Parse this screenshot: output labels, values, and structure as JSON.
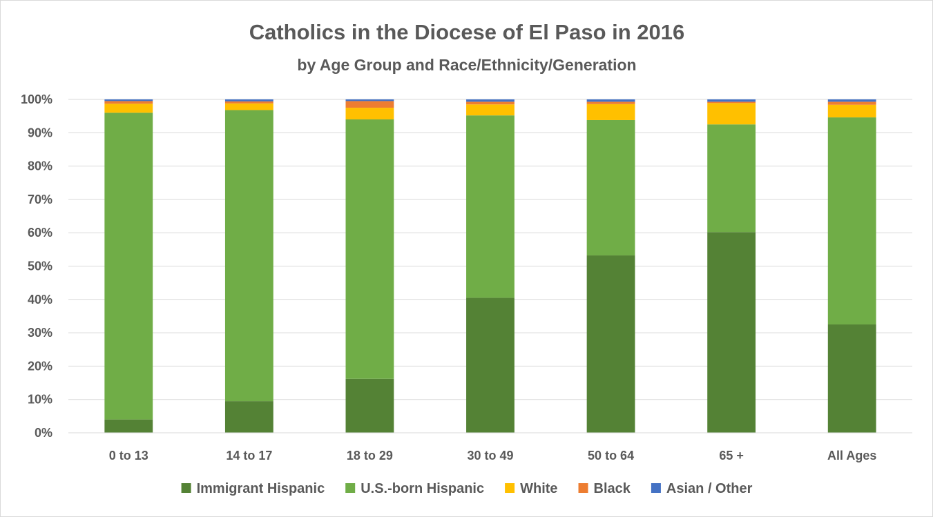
{
  "chart_data": {
    "type": "bar",
    "stacked": true,
    "title": "Catholics in the Diocese of El Paso in 2016",
    "subtitle": "by Age Group and Race/Ethnicity/Generation",
    "categories": [
      "0 to 13",
      "14 to 17",
      "18 to 29",
      "30 to 49",
      "50 to 64",
      "65 +",
      "All Ages"
    ],
    "ylim": [
      0,
      100
    ],
    "yticks": [
      "0%",
      "10%",
      "20%",
      "30%",
      "40%",
      "50%",
      "60%",
      "70%",
      "80%",
      "90%",
      "100%"
    ],
    "grid": true,
    "legend_position": "bottom",
    "series": [
      {
        "name": "Immigrant Hispanic",
        "color": "#548235",
        "values": [
          4.0,
          9.5,
          16.2,
          40.5,
          53.2,
          60.2,
          32.5
        ]
      },
      {
        "name": "U.S.-born Hispanic",
        "color": "#70ad47",
        "values": [
          92.0,
          87.3,
          77.8,
          54.7,
          40.6,
          32.3,
          62.1
        ]
      },
      {
        "name": "White",
        "color": "#ffc000",
        "values": [
          2.7,
          2.0,
          3.5,
          3.3,
          4.8,
          6.4,
          3.8
        ]
      },
      {
        "name": "Black",
        "color": "#ed7d31",
        "values": [
          0.8,
          0.6,
          2.0,
          0.8,
          0.7,
          0.4,
          0.9
        ]
      },
      {
        "name": "Asian / Other",
        "color": "#4472c4",
        "values": [
          0.5,
          0.6,
          0.5,
          0.7,
          0.7,
          0.7,
          0.7
        ]
      }
    ]
  }
}
